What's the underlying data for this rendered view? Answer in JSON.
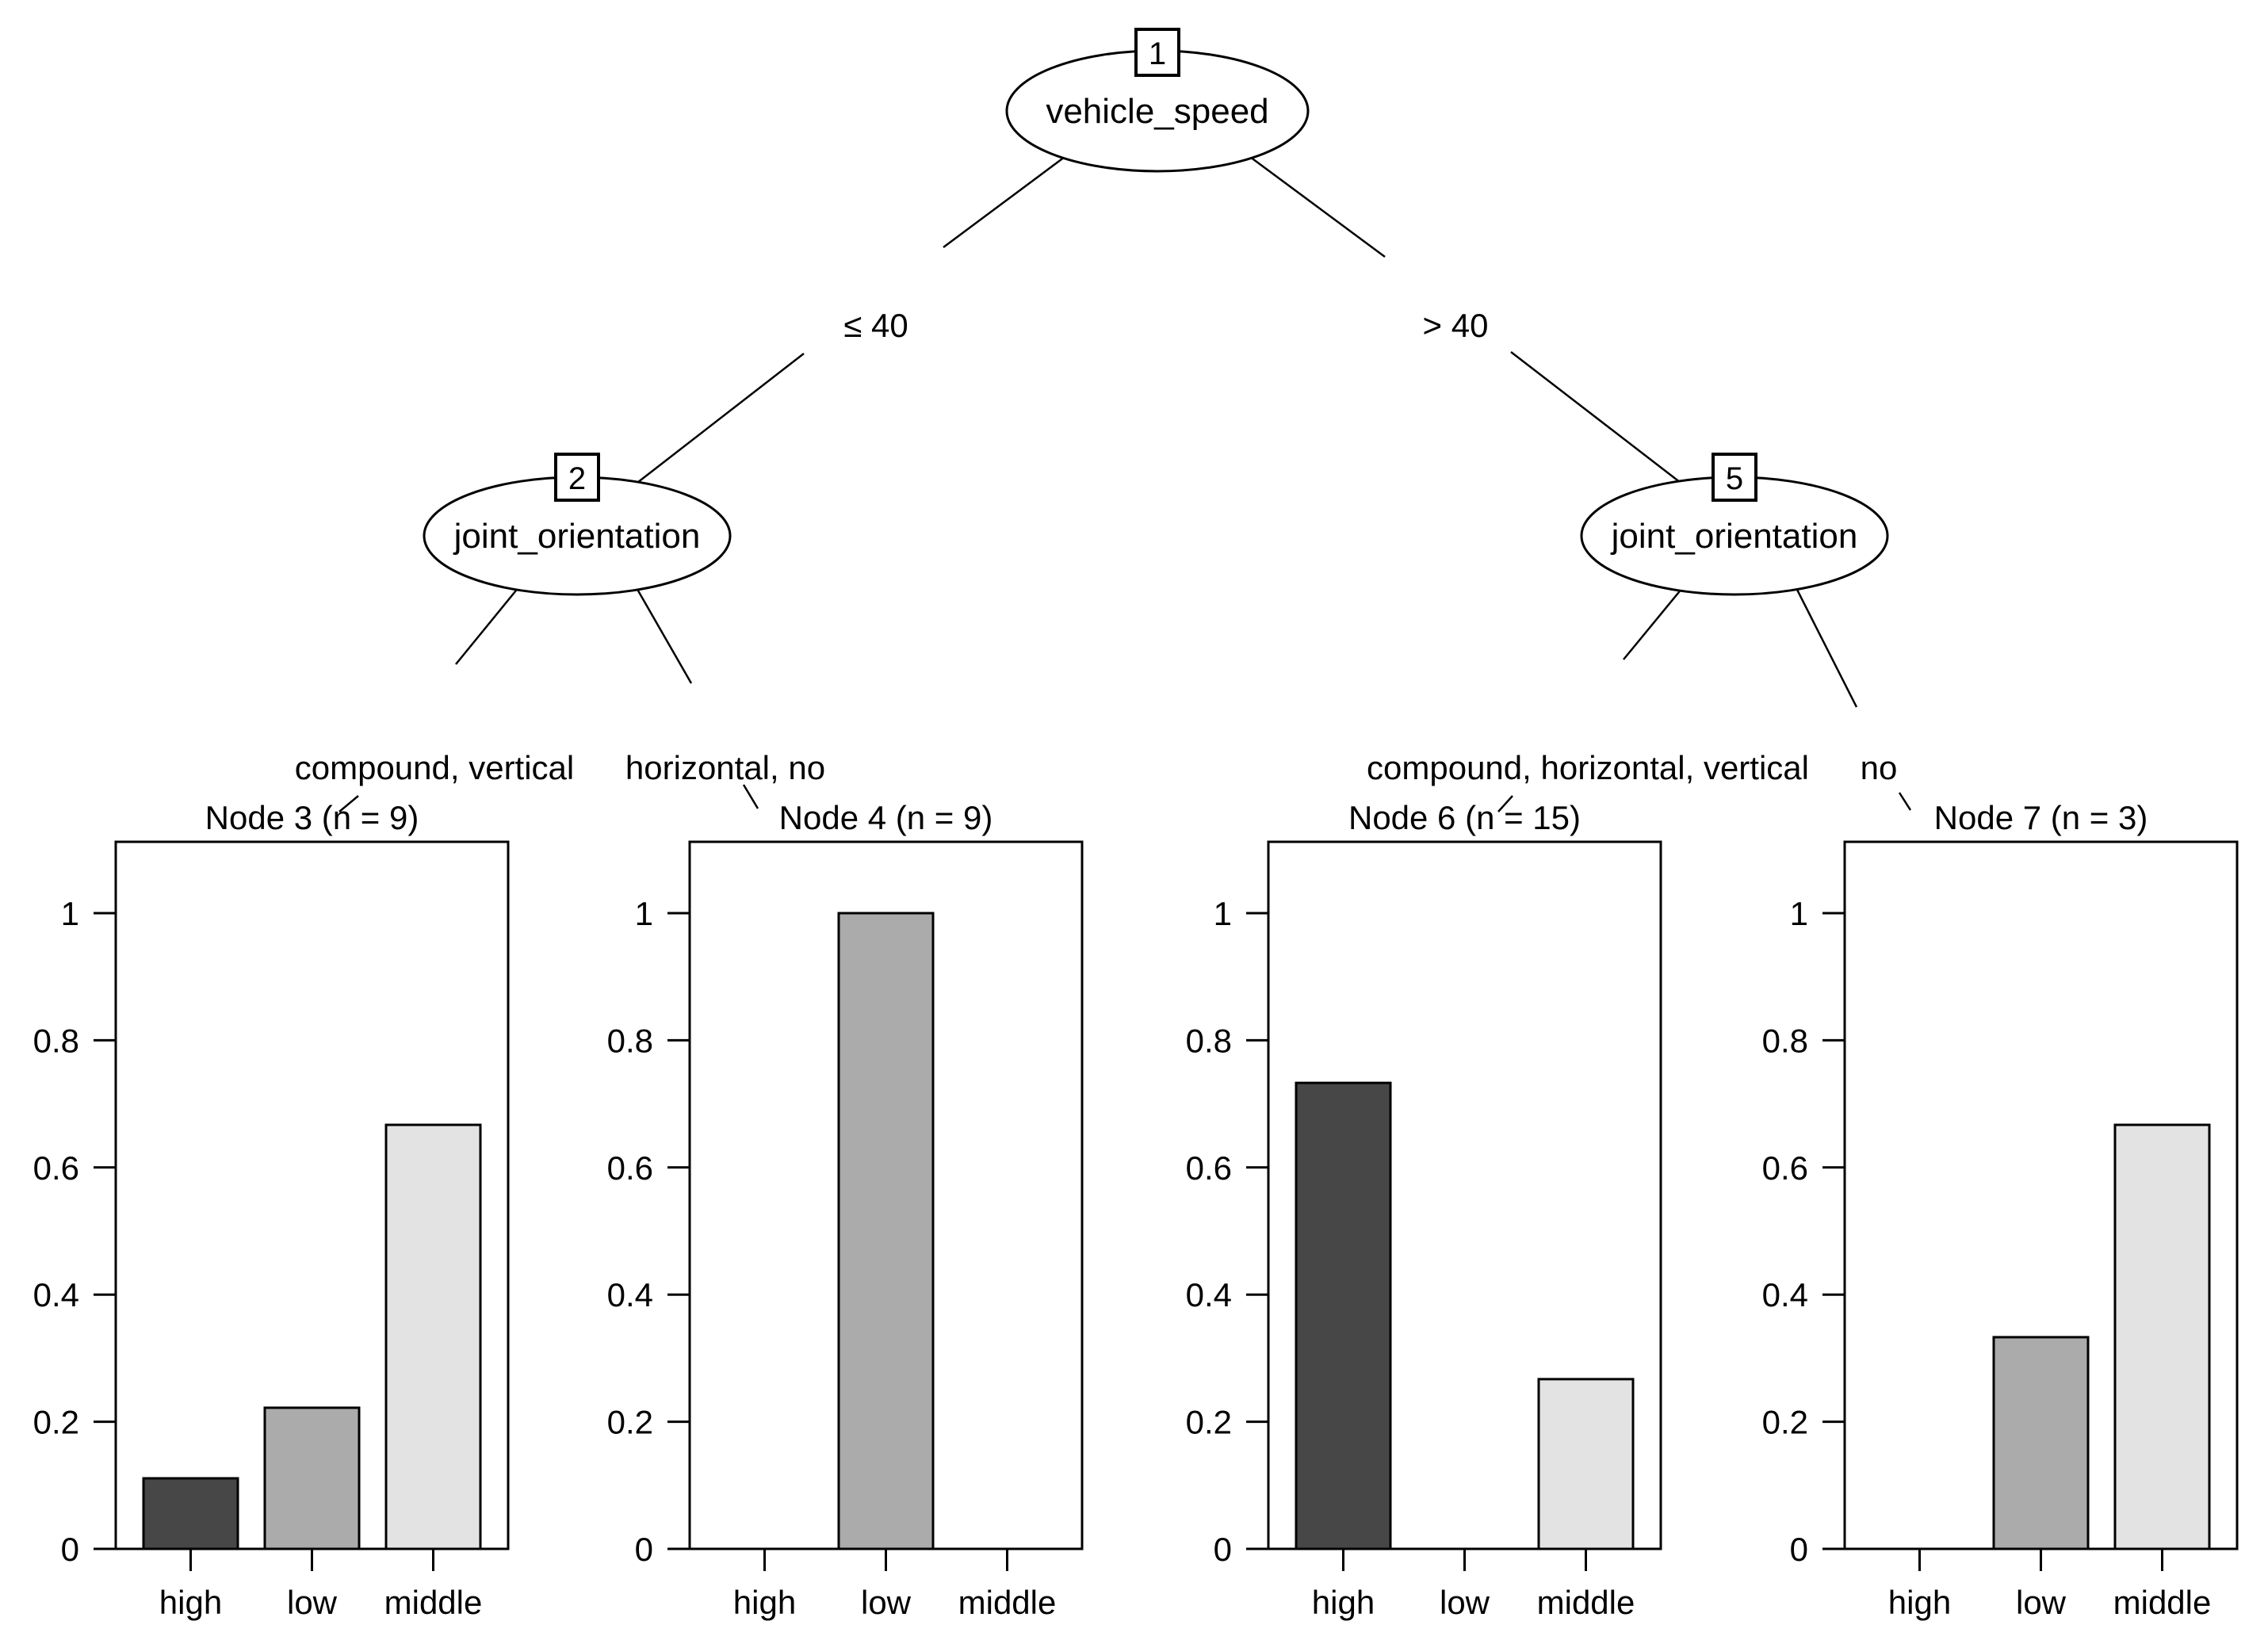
{
  "figure": {
    "background": "#ffffff",
    "text_color": "#000000"
  },
  "tree": {
    "nodes": [
      {
        "id": "1",
        "label": "vehicle_speed"
      },
      {
        "id": "2",
        "label": "joint_orientation"
      },
      {
        "id": "5",
        "label": "joint_orientation"
      }
    ],
    "edges": [
      {
        "from": "1",
        "to": "2",
        "label": "≤ 40"
      },
      {
        "from": "1",
        "to": "5",
        "label": "> 40"
      },
      {
        "from": "2",
        "to": "Node 3",
        "label": "compound, vertical"
      },
      {
        "from": "2",
        "to": "Node 4",
        "label": "horizontal, no"
      },
      {
        "from": "5",
        "to": "Node 6",
        "label": "compound, horizontal, vertical"
      },
      {
        "from": "5",
        "to": "Node 7",
        "label": "no"
      }
    ]
  },
  "chart_data": [
    {
      "type": "bar",
      "title": "Node 3 (n = 9)",
      "n": 9,
      "categories": [
        "high",
        "low",
        "middle"
      ],
      "values": [
        0.111,
        0.222,
        0.667
      ],
      "yticks": [
        0,
        0.2,
        0.4,
        0.6,
        0.8,
        1
      ],
      "ylim": [
        0,
        1.11
      ],
      "grid": false,
      "bar_colors": [
        "#474747",
        "#ababab",
        "#e3e3e3"
      ],
      "bar_border": "#000000"
    },
    {
      "type": "bar",
      "title": "Node 4 (n = 9)",
      "n": 9,
      "categories": [
        "high",
        "low",
        "middle"
      ],
      "values": [
        0,
        1,
        0
      ],
      "yticks": [
        0,
        0.2,
        0.4,
        0.6,
        0.8,
        1
      ],
      "ylim": [
        0,
        1.11
      ],
      "grid": false,
      "bar_colors": [
        "#474747",
        "#ababab",
        "#e3e3e3"
      ],
      "bar_border": "#000000"
    },
    {
      "type": "bar",
      "title": "Node 6 (n = 15)",
      "n": 15,
      "categories": [
        "high",
        "low",
        "middle"
      ],
      "values": [
        0.733,
        0,
        0.267
      ],
      "yticks": [
        0,
        0.2,
        0.4,
        0.6,
        0.8,
        1
      ],
      "ylim": [
        0,
        1.11
      ],
      "grid": false,
      "bar_colors": [
        "#474747",
        "#ababab",
        "#e3e3e3"
      ],
      "bar_border": "#000000"
    },
    {
      "type": "bar",
      "title": "Node 7 (n = 3)",
      "n": 3,
      "categories": [
        "high",
        "low",
        "middle"
      ],
      "values": [
        0,
        0.333,
        0.667
      ],
      "yticks": [
        0,
        0.2,
        0.4,
        0.6,
        0.8,
        1
      ],
      "ylim": [
        0,
        1.11
      ],
      "grid": false,
      "bar_colors": [
        "#474747",
        "#ababab",
        "#e3e3e3"
      ],
      "bar_border": "#000000"
    }
  ]
}
